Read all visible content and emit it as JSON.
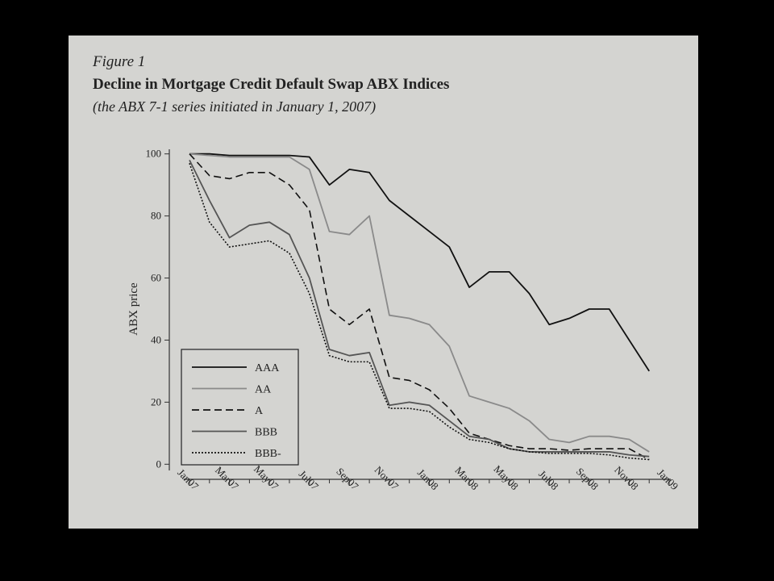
{
  "chart_data": {
    "type": "line",
    "figure_label": "Figure 1",
    "title": "Decline in Mortgage Credit Default Swap ABX Indices",
    "subtitle": "(the ABX 7-1 series initiated in January 1, 2007)",
    "y_label": "ABX price",
    "categories": [
      "Jan07",
      null,
      "Mar07",
      null,
      "May07",
      null,
      "Jul07",
      null,
      "Sep07",
      null,
      "Nov07",
      null,
      "Jan08",
      null,
      "Mar08",
      null,
      "May08",
      null,
      "Jul08",
      null,
      "Sep08",
      null,
      "Nov08",
      null,
      "Jan09"
    ],
    "ylim": [
      -2,
      102
    ],
    "yticks": [
      0,
      20,
      40,
      60,
      80,
      100
    ],
    "legend": "lower left",
    "series": [
      {
        "name": "AAA",
        "color": "#111111",
        "style": "solid",
        "values": [
          100,
          100,
          99.5,
          99.5,
          99.5,
          99.5,
          99,
          90,
          95,
          94,
          85,
          80,
          75,
          70,
          57,
          62,
          62,
          55,
          45,
          47,
          50,
          50,
          40,
          30,
          null
        ]
      },
      {
        "name": "AA",
        "color": "#8a8a8a",
        "style": "solid",
        "values": [
          100,
          99.5,
          99,
          99,
          99,
          99,
          95,
          75,
          74,
          80,
          48,
          47,
          45,
          38,
          22,
          20,
          18,
          14,
          8,
          7,
          9,
          9,
          8,
          4,
          null
        ]
      },
      {
        "name": "A",
        "color": "#111111",
        "style": "dashed",
        "values": [
          100,
          93,
          92,
          94,
          94,
          90,
          82,
          50,
          45,
          50,
          28,
          27,
          24,
          18,
          10,
          8,
          6,
          5,
          5,
          4.5,
          5,
          5,
          5,
          1.5,
          null
        ]
      },
      {
        "name": "BBB",
        "color": "#555555",
        "style": "solid",
        "values": [
          98,
          85,
          73,
          77,
          78,
          74,
          60,
          37,
          35,
          36,
          19,
          20,
          19,
          14,
          9,
          8,
          5,
          4,
          4,
          4,
          4,
          4,
          3,
          2.5,
          null
        ]
      },
      {
        "name": "BBB-",
        "color": "#111111",
        "style": "dotted",
        "values": [
          97,
          78,
          70,
          71,
          72,
          68,
          55,
          35,
          33,
          33,
          18,
          18,
          17,
          12,
          8,
          7,
          5,
          4,
          3.5,
          3.5,
          3.5,
          3,
          2,
          1.5,
          null
        ]
      }
    ]
  }
}
